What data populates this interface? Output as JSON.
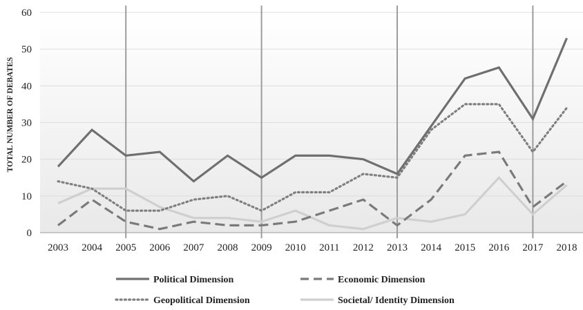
{
  "chart_data": {
    "type": "line",
    "title": "",
    "xlabel": "",
    "ylabel": "TOTAL NUMBER OF DEBATES",
    "categories": [
      "2003",
      "2004",
      "2005",
      "2006",
      "2007",
      "2008",
      "2009",
      "2010",
      "2011",
      "2012",
      "2013",
      "2014",
      "2015",
      "2016",
      "2017",
      "2018"
    ],
    "ylim": [
      0,
      60
    ],
    "yticks": [
      0,
      10,
      20,
      30,
      40,
      50,
      60
    ],
    "grid": "horizontal",
    "vertical_markers": [
      "2005",
      "2009",
      "2013",
      "2017"
    ],
    "legend_position": "bottom",
    "series": [
      {
        "name": "Political Dimension",
        "style": "solid",
        "color": "#6f6f6f",
        "values": [
          18,
          28,
          21,
          22,
          14,
          21,
          15,
          21,
          21,
          20,
          16,
          29,
          42,
          45,
          31,
          53
        ]
      },
      {
        "name": "Economic Dimension",
        "style": "dashed",
        "color": "#7a7a7a",
        "values": [
          2,
          9,
          3,
          1,
          3,
          2,
          2,
          3,
          6,
          9,
          2,
          9,
          21,
          22,
          7,
          14
        ]
      },
      {
        "name": "Geopolitical Dimension",
        "style": "dotted",
        "color": "#7f7f7f",
        "values": [
          14,
          12,
          6,
          6,
          9,
          10,
          6,
          11,
          11,
          16,
          15,
          28,
          35,
          35,
          22,
          34
        ]
      },
      {
        "name": "Societal/ Identity Dimension",
        "style": "solid",
        "color": "#cfcfcf",
        "values": [
          8,
          12,
          12,
          7,
          4,
          4,
          3,
          6,
          2,
          1,
          4,
          3,
          5,
          15,
          5,
          13
        ]
      }
    ]
  }
}
